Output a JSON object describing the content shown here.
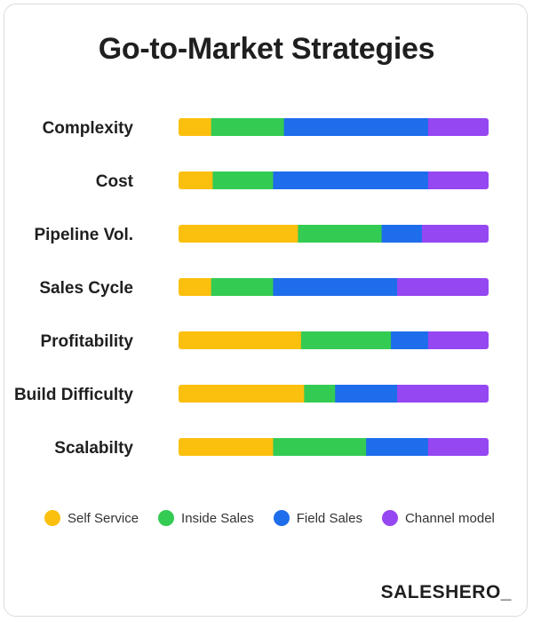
{
  "chart_data": {
    "type": "bar",
    "stacked": true,
    "orientation": "horizontal",
    "title": "Go-to-Market Strategies",
    "categories": [
      "Complexity",
      "Cost",
      "Pipeline Vol.",
      "Sales Cycle",
      "Profitability",
      "Build Difficulty",
      "Scalabilty"
    ],
    "series": [
      {
        "name": "Self Service",
        "color": "#FBBF0E",
        "values": [
          10.5,
          11,
          38.5,
          10.5,
          39.5,
          40.5,
          30.5
        ]
      },
      {
        "name": "Inside Sales",
        "color": "#34CB53",
        "values": [
          23.5,
          19.5,
          27,
          20,
          29,
          10,
          30
        ]
      },
      {
        "name": "Field Sales",
        "color": "#1E6DEB",
        "values": [
          46.5,
          50,
          13,
          40,
          12,
          20,
          20
        ]
      },
      {
        "name": "Channel model",
        "color": "#9547F2",
        "values": [
          19.5,
          19.5,
          21.5,
          29.5,
          19.5,
          29.5,
          19.5
        ]
      }
    ],
    "xlim": [
      0,
      100
    ],
    "grid": false,
    "legend": "bottom"
  },
  "brand": "SALESHERO_"
}
